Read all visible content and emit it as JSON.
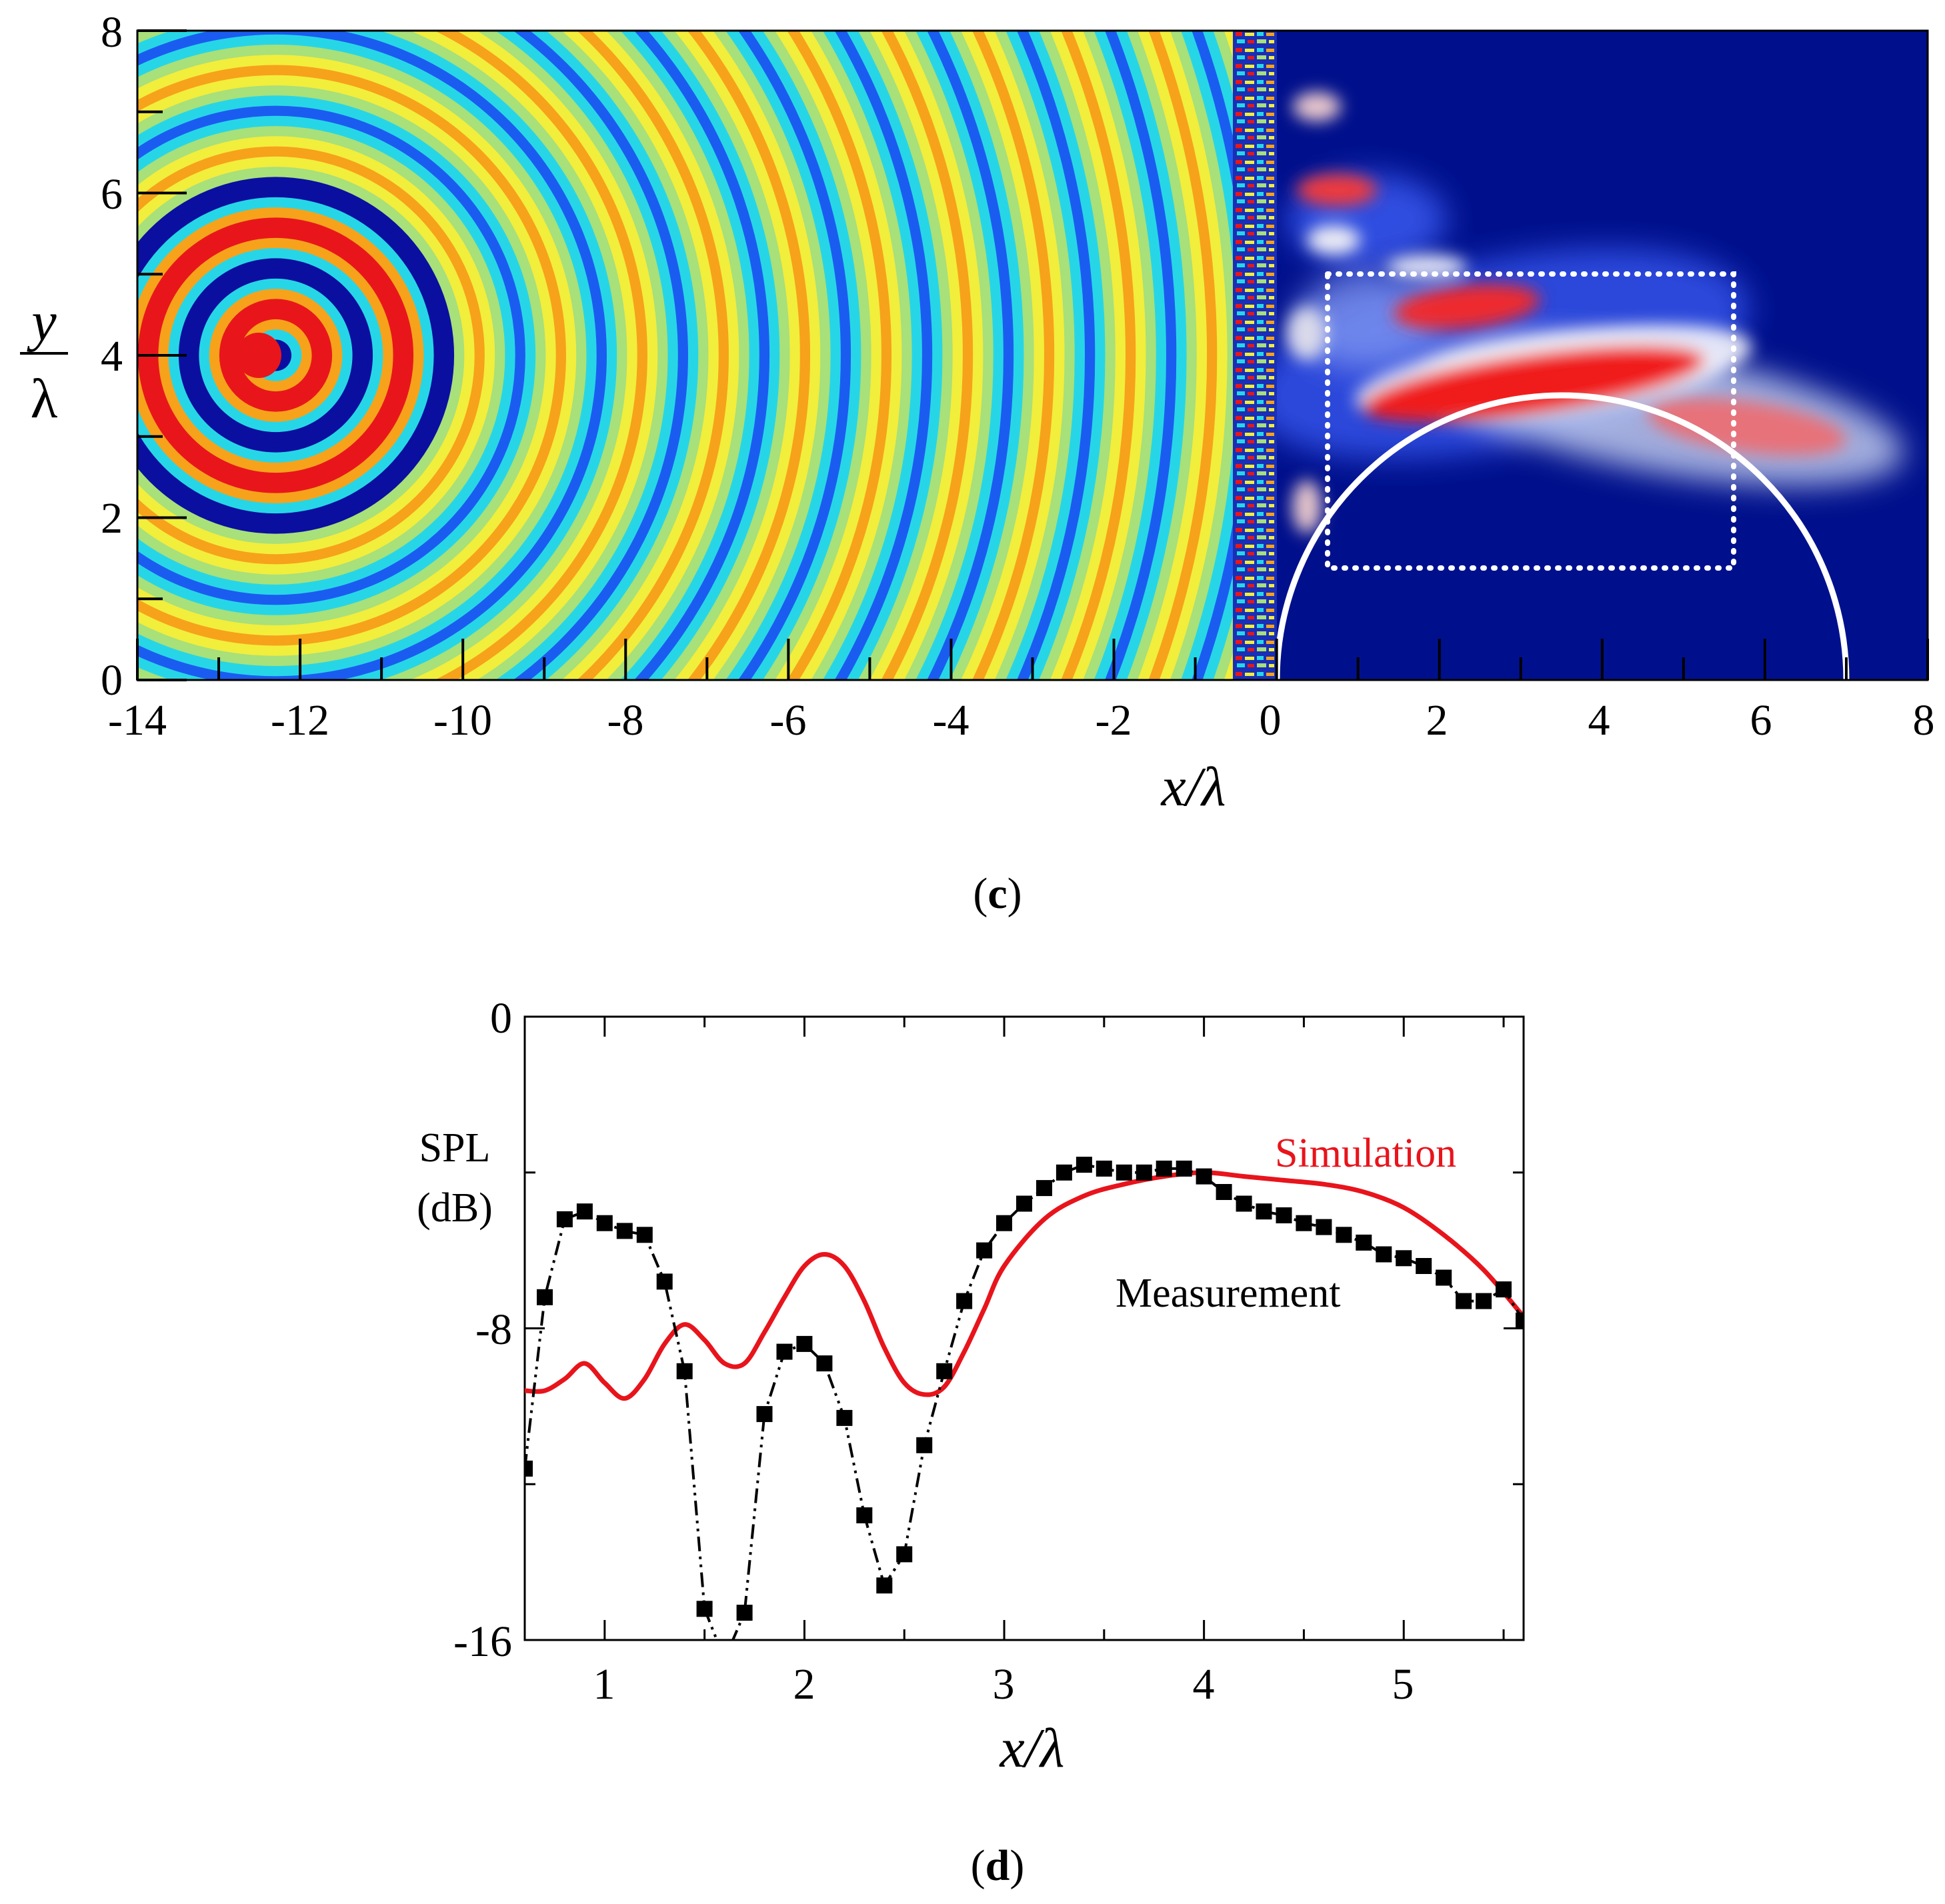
{
  "panels": {
    "c": {
      "label_open": "(",
      "label_letter": "c",
      "label_close": ")",
      "xlabel": "x/λ",
      "ylabel_num": "y",
      "ylabel_den": "λ",
      "x_ticks": [
        "-14",
        "-12",
        "-10",
        "-8",
        "-6",
        "-4",
        "-2",
        "0",
        "2",
        "4",
        "6",
        "8"
      ],
      "y_ticks": [
        "0",
        "2",
        "4",
        "6",
        "8"
      ],
      "colors": {
        "field_red": "#e8161b",
        "field_orange": "#f7a21b",
        "field_yellow": "#f2ee3c",
        "field_green": "#a8e07a",
        "field_cyan": "#27d6e6",
        "field_blue": "#1b5cf0",
        "field_navy": "#0a0fa0",
        "right_bg": "#00108c",
        "lens_white": "#ffffff"
      }
    },
    "d": {
      "label_open": "(",
      "label_letter": "d",
      "label_close": ")"
    }
  },
  "chart_data": [
    {
      "type": "heatmap",
      "title": "",
      "xlabel": "x/λ",
      "ylabel": "y/λ",
      "xlim": [
        -14,
        8
      ],
      "ylim": [
        0,
        8
      ],
      "x_ticks": [
        -14,
        -12,
        -10,
        -8,
        -6,
        -4,
        -2,
        0,
        2,
        4,
        6,
        8
      ],
      "y_ticks": [
        0,
        2,
        4,
        6,
        8
      ],
      "source_position": [
        -12.3,
        4
      ],
      "metasurface_x_range": [
        -0.5,
        0
      ],
      "focus_region_box": {
        "x": [
          0.6,
          5.6
        ],
        "y": [
          1.4,
          5
        ]
      },
      "reference_arc": {
        "center": [
          3.5,
          0
        ],
        "radius": 3.5
      }
    },
    {
      "type": "line",
      "title": "",
      "xlabel": "x/λ",
      "ylabel": "SPL (dB)",
      "ylabel_line1": "SPL",
      "ylabel_line2": "(dB)",
      "xlim": [
        0.6,
        5.6
      ],
      "ylim": [
        -16,
        0
      ],
      "x_ticks": [
        1,
        2,
        3,
        4,
        5
      ],
      "y_ticks": [
        0,
        -8,
        -16
      ],
      "y_tick_labels": [
        "0",
        "-8",
        "-16"
      ],
      "series": [
        {
          "name": "Simulation",
          "color": "#e8141c",
          "style": "solid",
          "x": [
            0.6,
            0.7,
            0.8,
            0.9,
            1.0,
            1.1,
            1.2,
            1.3,
            1.4,
            1.5,
            1.6,
            1.7,
            1.8,
            1.9,
            2.0,
            2.1,
            2.2,
            2.3,
            2.4,
            2.5,
            2.6,
            2.7,
            2.8,
            2.9,
            3.0,
            3.2,
            3.4,
            3.6,
            3.8,
            4.0,
            4.2,
            4.4,
            4.6,
            4.8,
            5.0,
            5.2,
            5.4,
            5.6
          ],
          "values": [
            -9.6,
            -9.6,
            -9.3,
            -8.9,
            -9.4,
            -9.8,
            -9.3,
            -8.4,
            -7.9,
            -8.3,
            -8.9,
            -8.9,
            -8.1,
            -7.2,
            -6.4,
            -6.1,
            -6.4,
            -7.3,
            -8.5,
            -9.4,
            -9.7,
            -9.5,
            -8.6,
            -7.5,
            -6.4,
            -5.2,
            -4.6,
            -4.3,
            -4.1,
            -4.0,
            -4.1,
            -4.2,
            -4.3,
            -4.5,
            -4.9,
            -5.6,
            -6.5,
            -7.7
          ]
        },
        {
          "name": "Measurement",
          "color": "#000000",
          "style": "dash-dot-dot",
          "marker": "square",
          "x": [
            0.6,
            0.7,
            0.8,
            0.9,
            1.0,
            1.1,
            1.2,
            1.3,
            1.4,
            1.5,
            1.6,
            1.7,
            1.8,
            1.9,
            2.0,
            2.1,
            2.2,
            2.3,
            2.4,
            2.5,
            2.6,
            2.7,
            2.8,
            2.9,
            3.0,
            3.1,
            3.2,
            3.3,
            3.4,
            3.5,
            3.6,
            3.7,
            3.8,
            3.9,
            4.0,
            4.1,
            4.2,
            4.3,
            4.4,
            4.5,
            4.6,
            4.7,
            4.8,
            4.9,
            5.0,
            5.1,
            5.2,
            5.3,
            5.4,
            5.5,
            5.6
          ],
          "values": [
            -11.6,
            -7.2,
            -5.2,
            -5.0,
            -5.3,
            -5.5,
            -5.6,
            -6.8,
            -9.1,
            -15.2,
            -16.5,
            -15.3,
            -10.2,
            -8.6,
            -8.4,
            -8.9,
            -10.3,
            -12.8,
            -14.6,
            -13.8,
            -11.0,
            -9.1,
            -7.3,
            -6.0,
            -5.3,
            -4.8,
            -4.4,
            -4.0,
            -3.8,
            -3.9,
            -4.0,
            -4.0,
            -3.9,
            -3.9,
            -4.1,
            -4.5,
            -4.8,
            -5.0,
            -5.1,
            -5.3,
            -5.4,
            -5.6,
            -5.8,
            -6.1,
            -6.2,
            -6.4,
            -6.7,
            -7.3,
            -7.3,
            -7.0,
            -7.8
          ]
        }
      ]
    }
  ]
}
